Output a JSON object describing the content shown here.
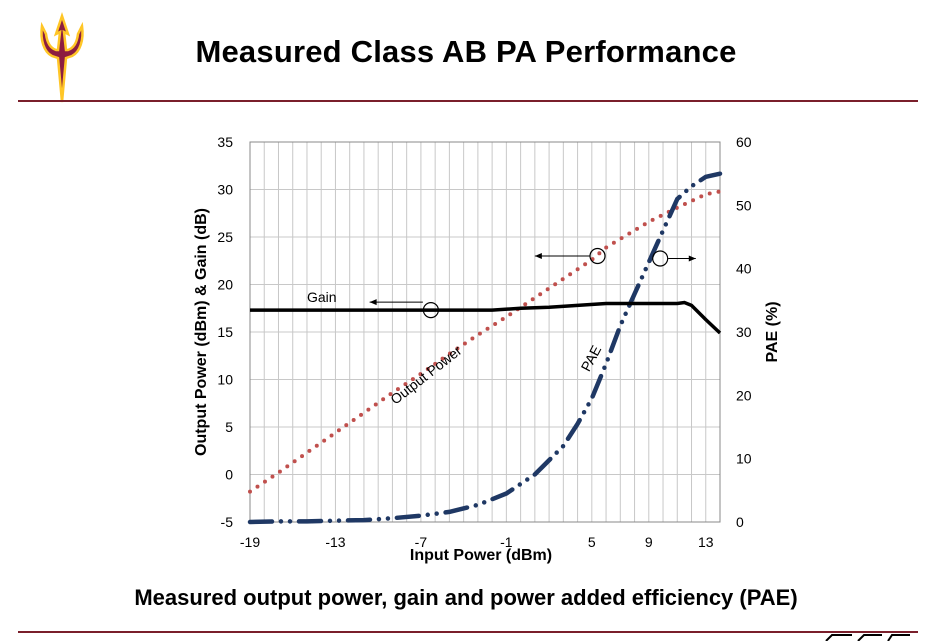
{
  "slide": {
    "title": "Measured Class AB PA Performance",
    "caption": "Measured output power, gain and power added efficiency (PAE)"
  },
  "colors": {
    "rule": "#7a1f2b",
    "logo_maroon": "#8c1d40",
    "logo_gold": "#ffc627",
    "output_power": "#c0504d",
    "gain": "#000000",
    "pae": "#1f3864"
  },
  "chart_data": {
    "type": "line",
    "xlabel": "Input Power (dBm)",
    "ylabel": "Output Power (dBm)   &   Gain (dB)",
    "y2label": "PAE (%)",
    "xlim": [
      -19,
      14
    ],
    "ylim": [
      -5,
      35
    ],
    "y2lim": [
      0,
      60
    ],
    "x_ticks": [
      "-19",
      "-13",
      "-7",
      "-1",
      "5",
      "9",
      "13"
    ],
    "y_ticks": [
      "-5",
      "0",
      "5",
      "10",
      "15",
      "20",
      "25",
      "30",
      "35"
    ],
    "y2_ticks": [
      "0",
      "10",
      "20",
      "30",
      "40",
      "50",
      "60"
    ],
    "grid": true,
    "series": [
      {
        "name": "Output Power",
        "axis": "left",
        "style": "dotted",
        "x": [
          -19,
          -17,
          -15,
          -13,
          -11,
          -9,
          -7,
          -5,
          -3,
          -1,
          1,
          3,
          5,
          6,
          7,
          9,
          11,
          13,
          14
        ],
        "y": [
          -1.8,
          0.2,
          2.3,
          4.4,
          6.5,
          8.6,
          10.6,
          12.7,
          14.7,
          16.6,
          18.6,
          20.6,
          22.6,
          23.9,
          24.8,
          26.6,
          28.1,
          29.5,
          29.8
        ]
      },
      {
        "name": "Gain",
        "axis": "left",
        "style": "solid",
        "x": [
          -19,
          -15,
          -10,
          -5,
          -2,
          0,
          2,
          4,
          6,
          8,
          10,
          11,
          11.5,
          12,
          13,
          14
        ],
        "y": [
          17.3,
          17.3,
          17.3,
          17.3,
          17.3,
          17.5,
          17.6,
          17.8,
          18.0,
          18.0,
          18.0,
          18.0,
          18.1,
          17.8,
          16.3,
          14.9
        ]
      },
      {
        "name": "PAE",
        "axis": "right",
        "style": "dash-dot",
        "x": [
          -19,
          -17,
          -15,
          -13,
          -11,
          -9,
          -7,
          -5,
          -3,
          -1,
          1,
          3,
          4,
          5,
          6,
          7,
          8,
          9,
          10,
          11,
          12,
          13,
          14
        ],
        "y": [
          0.0,
          0.1,
          0.1,
          0.2,
          0.3,
          0.6,
          1.0,
          1.6,
          2.7,
          4.5,
          7.5,
          12.0,
          15.5,
          19.5,
          25.0,
          31.0,
          36.0,
          41.0,
          46.0,
          51.0,
          53.0,
          54.5,
          55.0
        ]
      }
    ],
    "annotations": {
      "gain_label": "Gain",
      "output_power_label": "Output Power",
      "pae_label": "PAE"
    }
  }
}
